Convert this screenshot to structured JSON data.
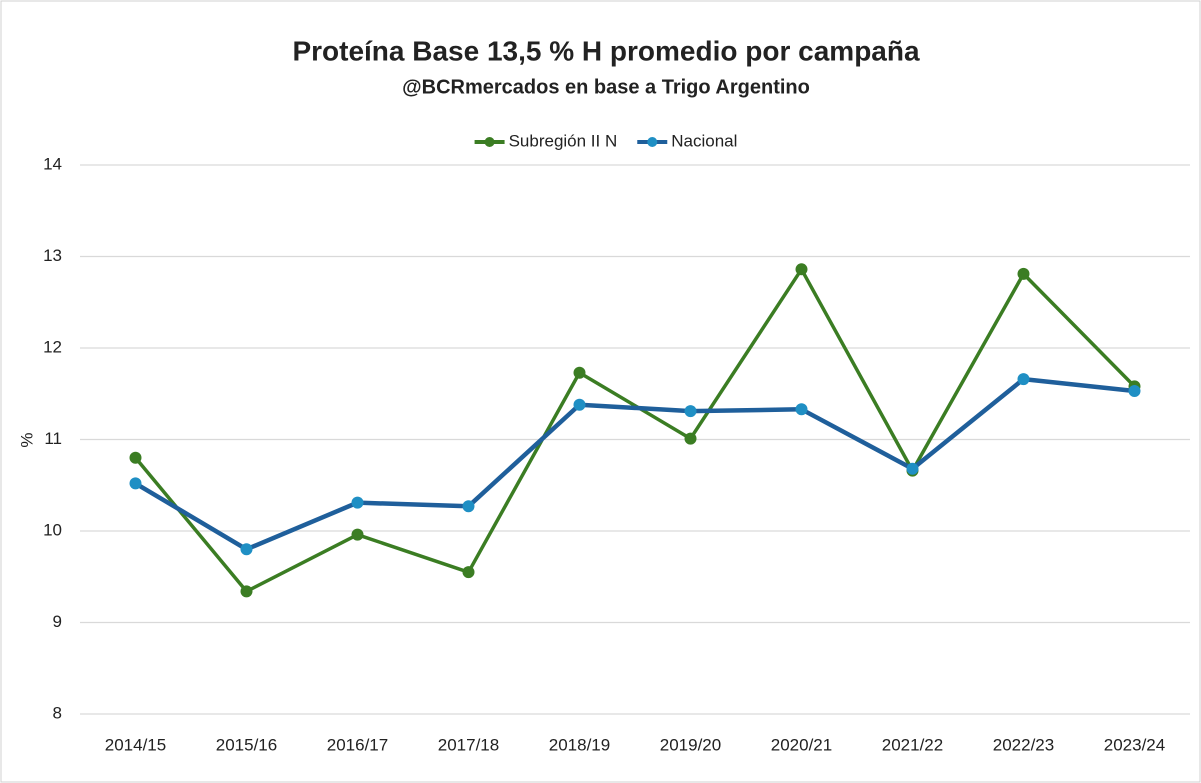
{
  "chart_data": {
    "type": "line",
    "title": "Proteína  Base 13,5 % H promedio por campaña",
    "subtitle": "@BCRmercados  en base a Trigo Argentino",
    "y_label": "%",
    "categories": [
      "2014/15",
      "2015/16",
      "2016/17",
      "2017/18",
      "2018/19",
      "2019/20",
      "2020/21",
      "2021/22",
      "2022/23",
      "2023/24"
    ],
    "series": [
      {
        "name": "Subregión II N",
        "color": "#3b7d23",
        "values": [
          10.8,
          9.34,
          9.96,
          9.55,
          11.73,
          11.01,
          12.86,
          10.66,
          12.81,
          11.58
        ]
      },
      {
        "name": "Nacional",
        "color": "#1f5f9b",
        "values": [
          10.52,
          9.8,
          10.31,
          10.27,
          11.38,
          11.31,
          11.33,
          10.68,
          11.66,
          11.53
        ]
      }
    ],
    "ylim": [
      8,
      14
    ],
    "yticks": [
      8,
      9,
      10,
      11,
      12,
      13,
      14
    ],
    "grid": true,
    "legend": "top"
  }
}
